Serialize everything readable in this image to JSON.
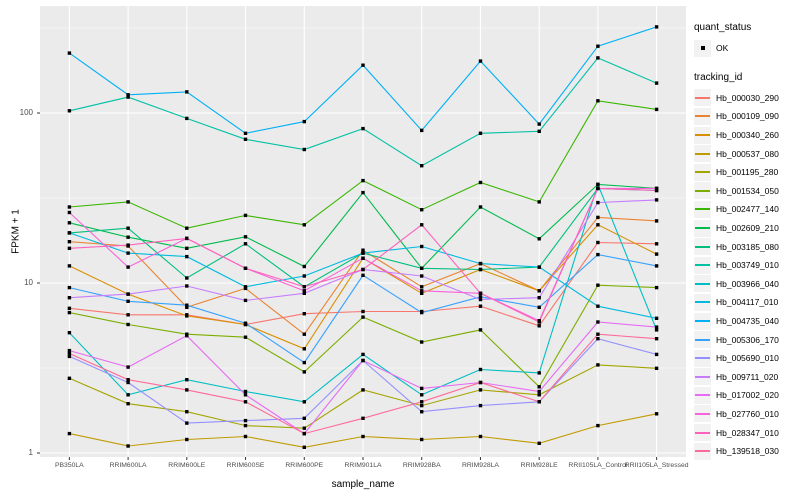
{
  "figure": {
    "panel_bg": "#EBEBEB",
    "grid_color": "#FFFFFF",
    "tick_color": "#333333",
    "tick_text_color": "#4D4D4D",
    "marker_color": "#000000"
  },
  "axes": {
    "x_title": "sample_name",
    "y_title": "FPKM + 1",
    "y_tick_labels": [
      "100",
      "10",
      "1"
    ],
    "y_tick_values": [
      100,
      10,
      1
    ],
    "y_minor_values": [
      316.23,
      31.623,
      3.1623
    ]
  },
  "legend": {
    "quant_title": "quant_status",
    "quant_items": [
      {
        "label": "OK"
      }
    ],
    "tracking_title": "tracking_id"
  },
  "chart_data": {
    "type": "line",
    "title": "",
    "xlabel": "sample_name",
    "ylabel": "FPKM + 1",
    "y_scale": "log10",
    "ylim": [
      1,
      355
    ],
    "grid": true,
    "legend_position": "right",
    "marker": "black-square",
    "categories": [
      "PB350LA",
      "RRIM600LA",
      "RRIM600LE",
      "RRIM600SE",
      "RRIM600PE",
      "RRIM901LA",
      "RRIM928BA",
      "RRIM928LA",
      "RRIM928LE",
      "RRII105LA_Control",
      "RRII105LA_Stressed"
    ],
    "series": [
      {
        "name": "Hb_000030_290",
        "color": "#F8766D",
        "values": [
          7.1,
          6.5,
          6.5,
          5.7,
          6.6,
          6.8,
          6.8,
          7.3,
          5.6,
          17.3,
          17.0
        ]
      },
      {
        "name": "Hb_000109_090",
        "color": "#EA8331",
        "values": [
          17.5,
          16.5,
          7.2,
          9.3,
          5.0,
          15.6,
          9.5,
          13.0,
          9.0,
          24.3,
          23.2
        ]
      },
      {
        "name": "Hb_000340_260",
        "color": "#D89000",
        "values": [
          12.6,
          8.6,
          6.4,
          5.7,
          4.1,
          14.0,
          8.7,
          12.0,
          9.0,
          22.0,
          14.8
        ]
      },
      {
        "name": "Hb_000537_080",
        "color": "#C09B00",
        "values": [
          1.3,
          1.1,
          1.2,
          1.25,
          1.08,
          1.25,
          1.2,
          1.25,
          1.14,
          1.45,
          1.7
        ]
      },
      {
        "name": "Hb_001195_280",
        "color": "#A3A500",
        "values": [
          2.75,
          1.95,
          1.75,
          1.45,
          1.4,
          2.35,
          1.9,
          2.35,
          2.2,
          3.3,
          3.15
        ]
      },
      {
        "name": "Hb_001534_050",
        "color": "#7CAE00",
        "values": [
          6.7,
          5.7,
          5.0,
          4.8,
          3.0,
          6.3,
          4.5,
          5.3,
          2.45,
          9.7,
          9.4
        ]
      },
      {
        "name": "Hb_002477_140",
        "color": "#39B600",
        "values": [
          28,
          30,
          21,
          25,
          22,
          40,
          27,
          39,
          30,
          118,
          105
        ]
      },
      {
        "name": "Hb_002609_210",
        "color": "#00BB4E",
        "values": [
          22.6,
          18.6,
          16,
          18.7,
          12.5,
          34,
          12.2,
          28,
          18.2,
          38,
          36
        ]
      },
      {
        "name": "Hb_003185_080",
        "color": "#00BF7D",
        "values": [
          19.7,
          21,
          10.7,
          17,
          9.5,
          15,
          12.2,
          12,
          12.4,
          36,
          35
        ]
      },
      {
        "name": "Hb_003749_010",
        "color": "#00C1A3",
        "values": [
          103,
          124,
          93,
          70,
          61,
          81,
          49,
          76,
          78,
          211,
          150
        ]
      },
      {
        "name": "Hb_003966_040",
        "color": "#00BFC4",
        "values": [
          5.1,
          2.2,
          2.7,
          2.3,
          2.0,
          3.8,
          2.2,
          3.1,
          2.96,
          38,
          5.3
        ]
      },
      {
        "name": "Hb_004117_010",
        "color": "#00BAE0",
        "values": [
          19.7,
          15,
          14.3,
          9.5,
          11,
          15,
          16.4,
          13,
          12.4,
          7.3,
          6.2
        ]
      },
      {
        "name": "Hb_004735_040",
        "color": "#00B0F6",
        "values": [
          225,
          128,
          133,
          76,
          89,
          191,
          79,
          202,
          86,
          247,
          321
        ]
      },
      {
        "name": "Hb_005306_170",
        "color": "#35A2FF",
        "values": [
          9.4,
          7.8,
          7.4,
          5.8,
          3.4,
          11.1,
          6.7,
          8.3,
          7.2,
          14.7,
          12.6
        ]
      },
      {
        "name": "Hb_005690_010",
        "color": "#9590FF",
        "values": [
          3.7,
          2.6,
          1.5,
          1.55,
          1.6,
          3.5,
          1.75,
          1.9,
          2.0,
          4.7,
          3.8
        ]
      },
      {
        "name": "Hb_009711_020",
        "color": "#C77CFF",
        "values": [
          8.2,
          8.6,
          9.6,
          7.9,
          8.7,
          12,
          11,
          8.0,
          8.2,
          29.7,
          30.8
        ]
      },
      {
        "name": "Hb_017002_020",
        "color": "#E76BF3",
        "values": [
          4.0,
          3.2,
          4.9,
          2.2,
          1.3,
          3.5,
          2.4,
          2.6,
          2.3,
          5.9,
          5.5
        ]
      },
      {
        "name": "Hb_027760_010",
        "color": "#FA62DB",
        "values": [
          26,
          12.4,
          18.3,
          12.2,
          9.0,
          14,
          9.0,
          8.7,
          6.0,
          36,
          36
        ]
      },
      {
        "name": "Hb_028347_010",
        "color": "#FF62BC",
        "values": [
          16,
          16.7,
          18.3,
          12.2,
          9.5,
          12,
          22,
          8.7,
          5.9,
          36,
          35
        ]
      },
      {
        "name": "Hb_139518_030",
        "color": "#FF6A98",
        "values": [
          3.85,
          2.7,
          2.35,
          2.0,
          1.3,
          1.6,
          2.0,
          2.6,
          2.0,
          5.0,
          4.7
        ]
      }
    ]
  }
}
